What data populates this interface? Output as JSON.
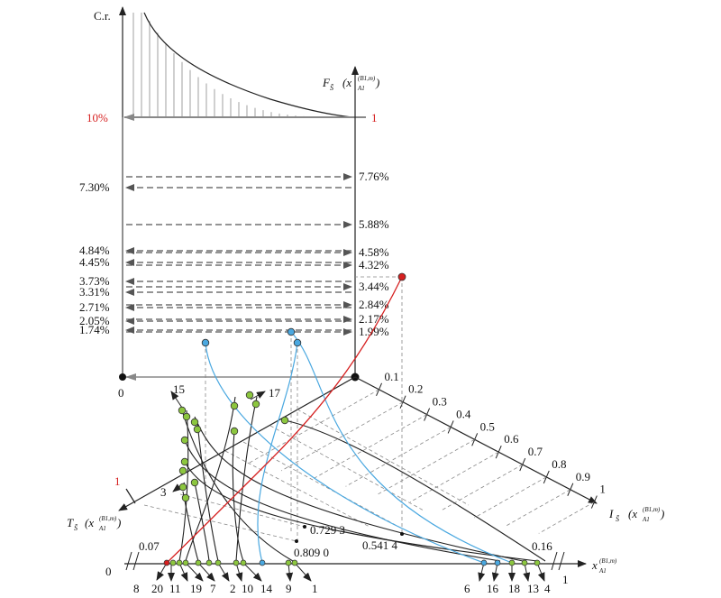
{
  "colors": {
    "ink": "#222222",
    "grid": "#888888",
    "arrow_gray": "#555555",
    "red": "#d62020",
    "blue": "#4aa8e0",
    "green": "#8cc63f"
  },
  "top_panel": {
    "ylabel": "C.r.",
    "left_value": "10%",
    "right_value": "1"
  },
  "f_axis": {
    "label_main": "F",
    "label_sub": "S̃",
    "label_arg": "(x",
    "label_arg_sub": "A1",
    "label_arg_sup": "(B1,m)",
    "label_close": ")"
  },
  "left_percentages": [
    "7.30%",
    "4.84%",
    "4.45%",
    "3.73%",
    "3.31%",
    "2.71%",
    "2.05%",
    "1.74%"
  ],
  "right_percentages": [
    "7.76%",
    "5.88%",
    "4.58%",
    "4.32%",
    "3.44%",
    "2.84%",
    "2.17%",
    "1.99%"
  ],
  "origin_label": "0",
  "i_axis": {
    "ticks": [
      "0.1",
      "0.2",
      "0.3",
      "0.4",
      "0.5",
      "0.6",
      "0.7",
      "0.8",
      "0.9",
      "1"
    ],
    "label_main": "I",
    "label_sub": "S̃",
    "label_arg": "(x",
    "label_arg_sub": "A1",
    "label_arg_sup": "(B1,m)",
    "label_close": ")"
  },
  "t_axis": {
    "end_value": "1",
    "label_main": "T",
    "label_sub": "S̃",
    "label_arg": "(x",
    "label_arg_sub": "A1",
    "label_arg_sup": "(B1,m)",
    "label_close": ")"
  },
  "x_axis": {
    "left_zero": "0",
    "left_value": "0.07",
    "right_value": "0.16",
    "right_end": "1",
    "label_main": "x",
    "label_sub": "A1",
    "label_sup": "(B1,m)"
  },
  "annotations": {
    "a1": "0.729 3",
    "a2": "0.809 0",
    "a3": "0.541 4"
  },
  "series_labels": {
    "s15": "15",
    "s17": "17",
    "s3": "3"
  },
  "bottom_left_labels": [
    "8",
    "20",
    "11",
    "19",
    "7",
    "2",
    "10",
    "14",
    "9",
    "1"
  ],
  "bottom_right_labels": [
    "6",
    "16",
    "18",
    "13",
    "4"
  ]
}
